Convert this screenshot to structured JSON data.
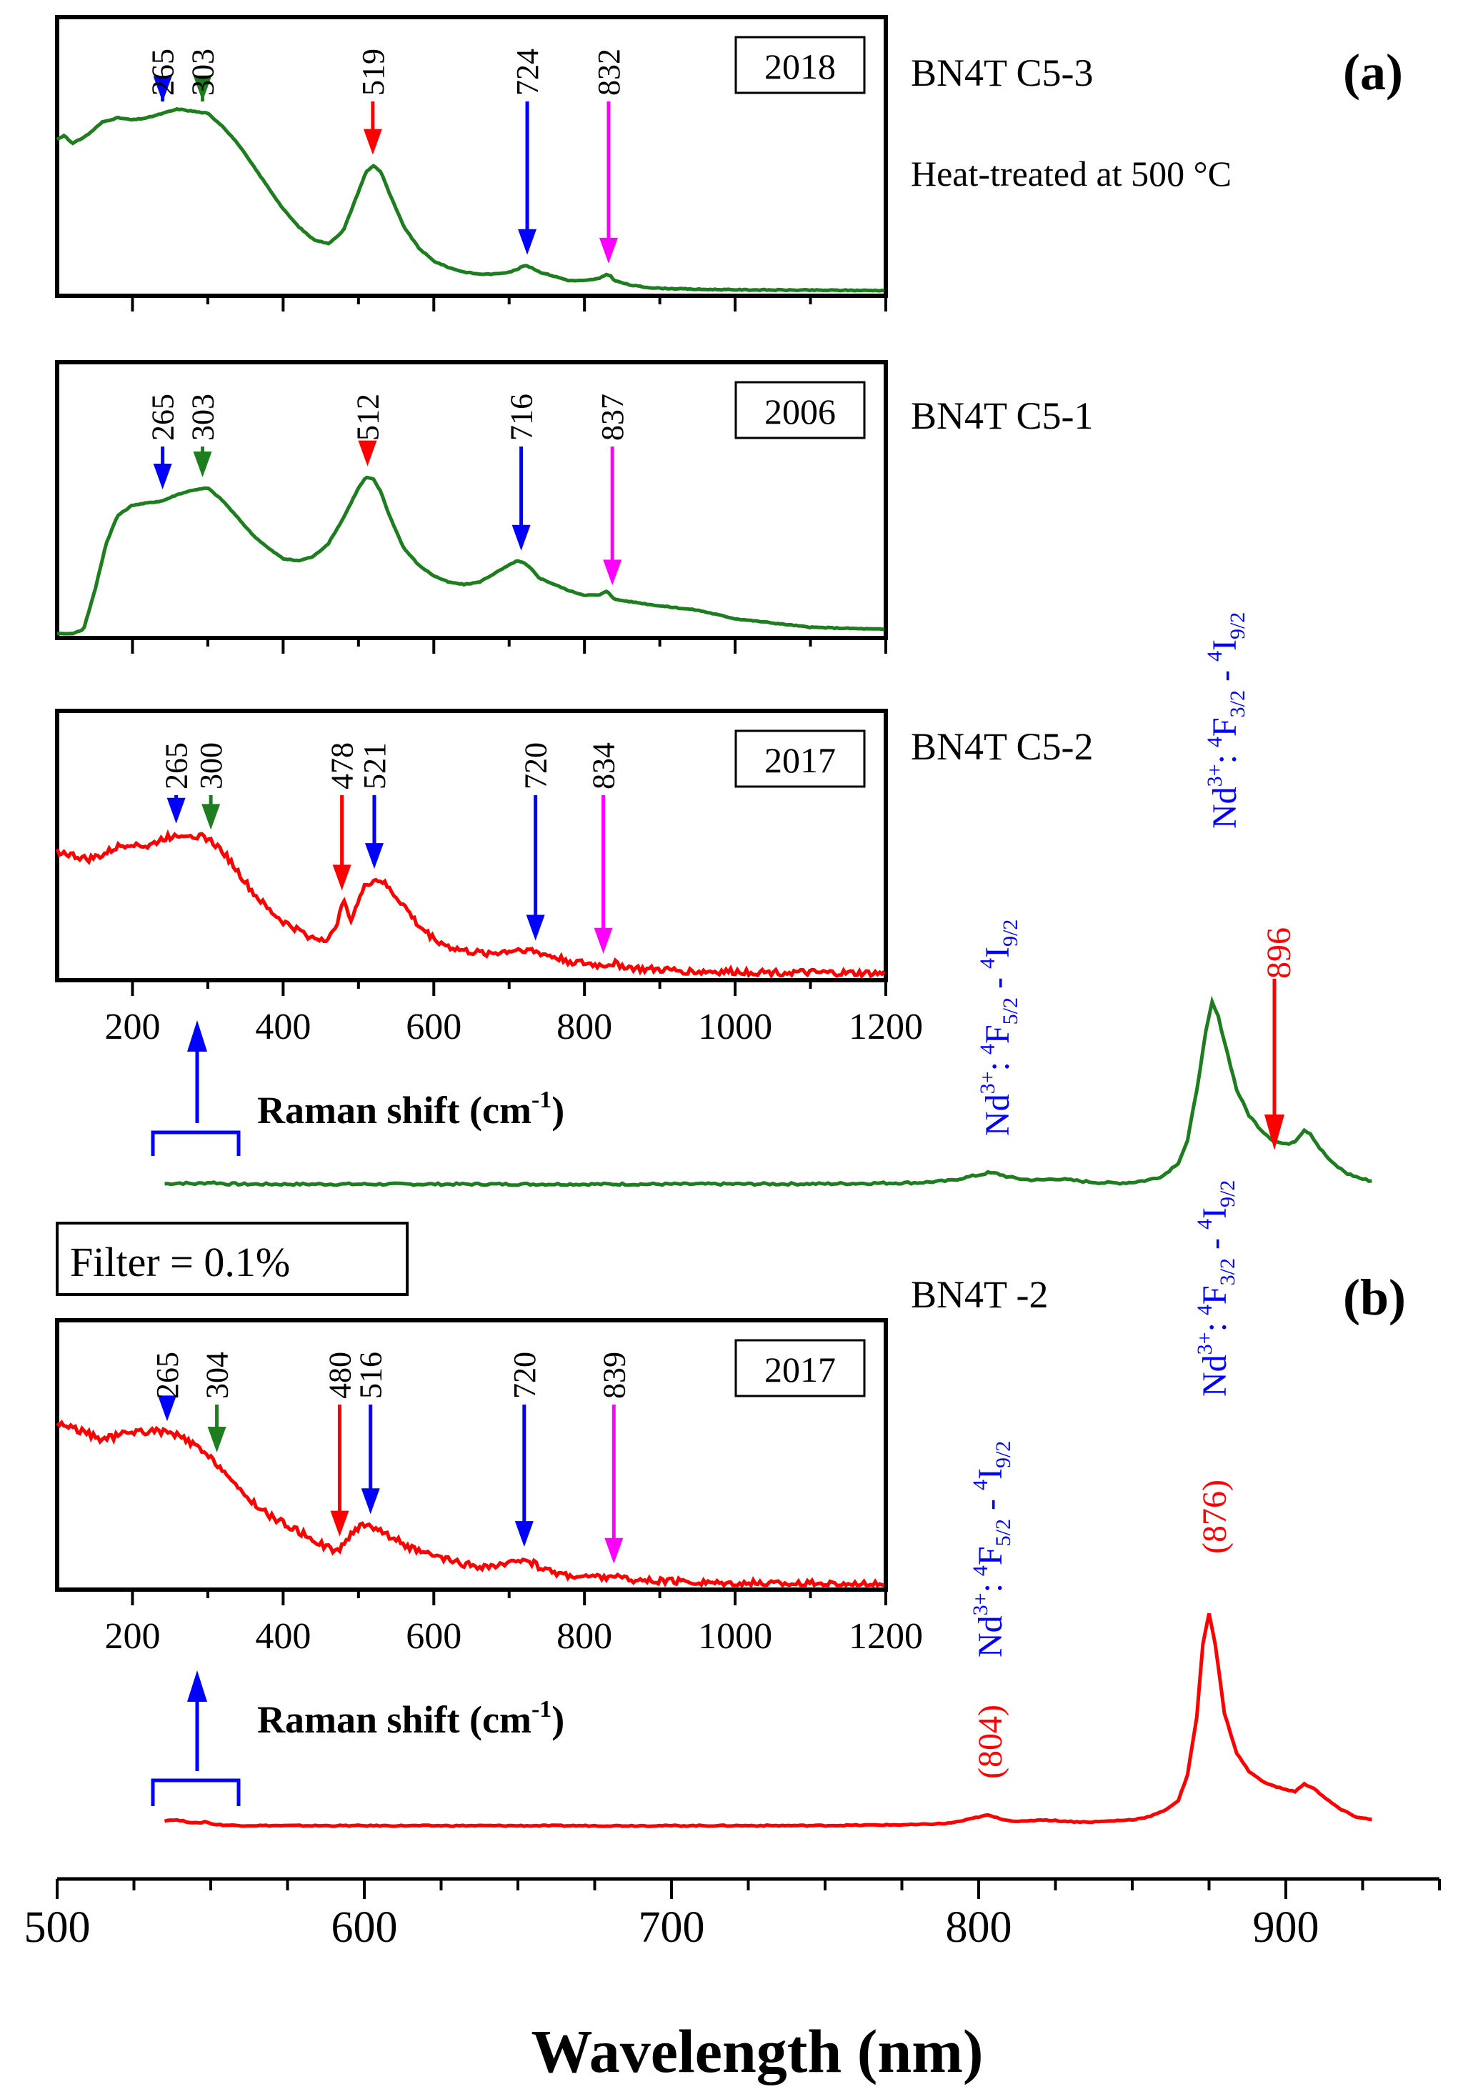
{
  "colors": {
    "green": "#1e7d1e",
    "red": "#ff0000",
    "blue": "#0000ff",
    "magenta": "#ff00ff",
    "black": "#000000"
  },
  "chart_data": {
    "type": "line",
    "xlabel": "Wavelength (nm)",
    "xlim": [
      500,
      950
    ],
    "xticks": [
      "500",
      "600",
      "700",
      "800",
      "900"
    ],
    "panel_labels": {
      "a": "(a)",
      "b": "(b)"
    },
    "sample_labels": {
      "top": "BN4T C5-3",
      "heat": "Heat-treated at 500 °C",
      "mid": "BN4T C5-1",
      "c52": "BN4T C5-2",
      "bn4t2": "BN4T -2"
    },
    "filter_label": "Filter = 0.1%",
    "annotations": {
      "a_896": "896",
      "b_804": "(804)",
      "b_876": "(876)",
      "nd_ion": "Nd",
      "nd_charge": "3+",
      "nd_colon": ":",
      "sup4": "4",
      "f32": "F",
      "f32_sub": "3/2",
      "f52": "F",
      "f52_sub": "5/2",
      "dash": "-",
      "i92": "I",
      "i92_sub": "9/2"
    },
    "main_series": [
      {
        "name": "BN4T C5-2 (green)",
        "panel": "a",
        "x": [
          535,
          540,
          545,
          550,
          555,
          560,
          580,
          600,
          650,
          700,
          750,
          780,
          790,
          795,
          800,
          803,
          806,
          810,
          815,
          820,
          825,
          830,
          835,
          840,
          845,
          850,
          855,
          860,
          865,
          868,
          871,
          874,
          876,
          878,
          881,
          884,
          888,
          892,
          896,
          900,
          903,
          906,
          908,
          911,
          915,
          920,
          925,
          928
        ],
        "y": [
          0.2,
          0.4,
          0.2,
          0.6,
          0.2,
          0.1,
          0.1,
          0.1,
          0.1,
          0.1,
          0.2,
          0.5,
          1.0,
          1.8,
          2.6,
          3.2,
          3.0,
          2.0,
          1.4,
          1.2,
          1.6,
          1.2,
          0.8,
          0.5,
          0.4,
          0.6,
          1.2,
          2.4,
          6.0,
          12.0,
          26.0,
          42.0,
          50.0,
          46.0,
          36.0,
          26.0,
          19.0,
          15.0,
          12.0,
          11.0,
          12.0,
          15.0,
          14.0,
          10.0,
          6.0,
          3.0,
          1.5,
          1.0
        ]
      },
      {
        "name": "BN4T-2 (red)",
        "panel": "b",
        "x": [
          535,
          538,
          542,
          546,
          548,
          551,
          555,
          560,
          580,
          600,
          650,
          700,
          750,
          780,
          790,
          795,
          800,
          803,
          806,
          810,
          815,
          820,
          825,
          830,
          835,
          840,
          845,
          850,
          855,
          860,
          865,
          868,
          871,
          873,
          875,
          877,
          880,
          884,
          888,
          892,
          896,
          900,
          903,
          906,
          909,
          913,
          918,
          923,
          928
        ],
        "y": [
          3.0,
          3.5,
          2.5,
          1.5,
          2.5,
          1.0,
          0.5,
          0.3,
          0.2,
          0.2,
          0.2,
          0.2,
          0.3,
          0.8,
          1.5,
          3.0,
          5.0,
          6.0,
          4.5,
          3.0,
          2.5,
          3.5,
          3.0,
          2.5,
          2.2,
          2.5,
          3.0,
          3.5,
          5.0,
          8.0,
          14.0,
          28.0,
          60.0,
          100.0,
          117.0,
          100.0,
          62.0,
          40.0,
          30.0,
          25.0,
          22.0,
          20.0,
          19.0,
          23.0,
          21.0,
          15.0,
          9.0,
          5.0,
          3.5
        ]
      }
    ],
    "insets": [
      {
        "id": "inset1",
        "year": "2018",
        "color": "green",
        "xlim": [
          100,
          1200
        ],
        "x": [
          100,
          110,
          120,
          140,
          160,
          180,
          200,
          220,
          240,
          260,
          280,
          300,
          320,
          340,
          360,
          380,
          400,
          420,
          440,
          460,
          480,
          500,
          510,
          520,
          530,
          540,
          560,
          580,
          600,
          620,
          640,
          660,
          680,
          700,
          710,
          720,
          730,
          740,
          760,
          780,
          800,
          820,
          830,
          835,
          840,
          860,
          880,
          900,
          950,
          1000,
          1100,
          1200
        ],
        "y": [
          70,
          72,
          68,
          72,
          78,
          80,
          79,
          80,
          82,
          84,
          83,
          82,
          76,
          68,
          58,
          48,
          38,
          30,
          24,
          22,
          28,
          46,
          55,
          58,
          55,
          46,
          30,
          20,
          14,
          11,
          9,
          8,
          8,
          9,
          10,
          12,
          11,
          9,
          7,
          5,
          5,
          6,
          8,
          7,
          5,
          3,
          2,
          1.5,
          1,
          0.8,
          0.6,
          0.5
        ],
        "peaks": [
          {
            "label": "265",
            "x": 240,
            "color": "blue"
          },
          {
            "label": "303",
            "x": 293,
            "color": "green"
          },
          {
            "label": "519",
            "x": 519,
            "color": "red"
          },
          {
            "label": "724",
            "x": 724,
            "color": "blue"
          },
          {
            "label": "832",
            "x": 832,
            "color": "magenta"
          }
        ]
      },
      {
        "id": "inset2",
        "year": "2006",
        "color": "green",
        "xlim": [
          100,
          1200
        ],
        "x": [
          100,
          120,
          135,
          150,
          165,
          180,
          200,
          220,
          240,
          260,
          280,
          300,
          320,
          340,
          360,
          380,
          400,
          420,
          440,
          460,
          480,
          500,
          510,
          520,
          530,
          540,
          560,
          580,
          600,
          620,
          640,
          660,
          680,
          700,
          710,
          720,
          730,
          740,
          760,
          780,
          800,
          820,
          830,
          835,
          840,
          860,
          880,
          900,
          950,
          1000,
          1100,
          1200
        ],
        "y": [
          0,
          0,
          2,
          20,
          42,
          55,
          60,
          61,
          62,
          65,
          67,
          68,
          62,
          54,
          46,
          40,
          35,
          34,
          36,
          42,
          54,
          68,
          73,
          72,
          66,
          56,
          40,
          32,
          27,
          24,
          23,
          24,
          28,
          32,
          34,
          33,
          30,
          26,
          23,
          20,
          18,
          18,
          20,
          18,
          16,
          15,
          14,
          13,
          11,
          7,
          3,
          2
        ],
        "peaks": [
          {
            "label": "265",
            "x": 240,
            "color": "blue"
          },
          {
            "label": "303",
            "x": 293,
            "color": "green"
          },
          {
            "label": "512",
            "x": 512,
            "color": "red"
          },
          {
            "label": "716",
            "x": 716,
            "color": "blue"
          },
          {
            "label": "837",
            "x": 837,
            "color": "magenta"
          }
        ]
      },
      {
        "id": "inset3",
        "year": "2017",
        "color": "red",
        "xlim": [
          100,
          1200
        ],
        "x": [
          100,
          120,
          140,
          160,
          180,
          200,
          220,
          240,
          260,
          280,
          300,
          320,
          340,
          360,
          380,
          400,
          420,
          440,
          460,
          470,
          475,
          480,
          485,
          490,
          500,
          510,
          520,
          530,
          540,
          560,
          580,
          600,
          620,
          640,
          660,
          680,
          700,
          720,
          740,
          760,
          780,
          800,
          820,
          840,
          860,
          880,
          900,
          950,
          1000,
          1100,
          1200
        ],
        "y": [
          60,
          58,
          56,
          58,
          62,
          64,
          62,
          66,
          68,
          68,
          66,
          60,
          50,
          40,
          32,
          26,
          22,
          18,
          18,
          22,
          32,
          38,
          30,
          28,
          36,
          44,
          46,
          46,
          42,
          34,
          24,
          18,
          14,
          12,
          11,
          11,
          12,
          13,
          11,
          9,
          7,
          6,
          5,
          6,
          4,
          3,
          3,
          2,
          2,
          1.5,
          1
        ],
        "peaks": [
          {
            "label": "265",
            "x": 258,
            "color": "blue"
          },
          {
            "label": "300",
            "x": 304,
            "color": "green"
          },
          {
            "label": "478",
            "x": 478,
            "color": "red"
          },
          {
            "label": "521",
            "x": 521,
            "color": "blue"
          },
          {
            "label": "720",
            "x": 735,
            "color": "blue"
          },
          {
            "label": "834",
            "x": 825,
            "color": "magenta"
          }
        ]
      },
      {
        "id": "inset4",
        "year": "2017",
        "color": "red",
        "xlim": [
          100,
          1200
        ],
        "x": [
          100,
          120,
          140,
          160,
          180,
          200,
          220,
          240,
          260,
          280,
          300,
          320,
          340,
          360,
          380,
          400,
          420,
          440,
          460,
          470,
          480,
          490,
          500,
          510,
          520,
          530,
          540,
          560,
          580,
          600,
          620,
          640,
          660,
          680,
          700,
          710,
          720,
          730,
          740,
          760,
          780,
          800,
          820,
          830,
          840,
          845,
          850,
          860,
          880,
          900,
          950,
          1000,
          1100,
          1200
        ],
        "y": [
          78,
          76,
          73,
          70,
          72,
          74,
          74,
          74,
          72,
          68,
          62,
          56,
          46,
          40,
          34,
          30,
          26,
          22,
          18,
          16,
          20,
          24,
          28,
          30,
          28,
          26,
          24,
          20,
          16,
          14,
          12,
          10,
          9,
          9,
          10,
          12,
          13,
          11,
          9,
          6,
          5,
          4,
          4,
          4,
          5,
          4,
          3,
          3,
          2,
          2,
          1.5,
          1,
          0.8,
          0.5
        ],
        "peaks": [
          {
            "label": "265",
            "x": 246,
            "color": "blue"
          },
          {
            "label": "304",
            "x": 312,
            "color": "green"
          },
          {
            "label": "480",
            "x": 475,
            "color": "red"
          },
          {
            "label": "516",
            "x": 516,
            "color": "blue"
          },
          {
            "label": "720",
            "x": 720,
            "color": "blue"
          },
          {
            "label": "839",
            "x": 839,
            "color": "magenta"
          }
        ]
      }
    ],
    "inset_axis": {
      "xticks": [
        "200",
        "400",
        "600",
        "800",
        "1000",
        "1200"
      ],
      "xlabel": "Raman shift (cm",
      "xlabel_sup": "-1",
      "xlabel_end": ")"
    }
  }
}
